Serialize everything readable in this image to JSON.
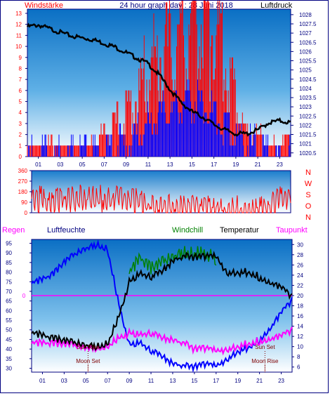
{
  "header": {
    "left": "Windstärke",
    "center": "24 hour graph day : 28 Juni 2018",
    "right": "Luftdruck"
  },
  "lower_labels": {
    "regen": "Regen",
    "luftfeuchte": "Luftfeuchte",
    "windchill": "Windchill",
    "temperatur": "Temperatur",
    "taupunkt": "Taupunkt"
  },
  "colors": {
    "wind_gust": "#ff0000",
    "wind_avg": "#0000ff",
    "pressure": "#000000",
    "direction": "#ff0000",
    "humidity": "#0000ff",
    "temperature": "#000000",
    "windchill": "#008000",
    "dewpoint": "#ff00ff",
    "axis_text": "#000080",
    "wind_axis_text": "#ff0000"
  },
  "chart_data": [
    {
      "type": "line",
      "title": "24 hour graph day : 28 Juni 2018",
      "xlabel": "",
      "x_ticks": [
        "01",
        "03",
        "05",
        "07",
        "09",
        "11",
        "13",
        "15",
        "17",
        "19",
        "21",
        "23"
      ],
      "y_left_label": "Windstärke",
      "y_left_ticks": [
        0,
        1,
        2,
        3,
        4,
        5,
        6,
        7,
        8,
        9,
        10,
        11,
        12,
        13
      ],
      "y_left_range": [
        0,
        13
      ],
      "y_right_label": "Luftdruck",
      "y_right_ticks": [
        1020.5,
        1021,
        1021.5,
        1022,
        1022.5,
        1023,
        1023.5,
        1024,
        1024.5,
        1025,
        1025.5,
        1026,
        1026.5,
        1027,
        1027.5,
        1028
      ],
      "y_right_range": [
        1020.3,
        1028.3
      ],
      "series": [
        {
          "name": "Luftdruck",
          "axis": "right",
          "x": [
            0,
            1,
            2,
            3,
            4,
            5,
            6,
            7,
            8,
            9,
            10,
            11,
            12,
            13,
            14,
            15,
            16,
            17,
            18,
            19,
            20,
            21,
            22,
            23,
            24
          ],
          "values": [
            1027.4,
            1027.5,
            1027.3,
            1027.1,
            1026.9,
            1026.8,
            1026.7,
            1026.5,
            1026.3,
            1026,
            1025.7,
            1025.4,
            1024.8,
            1024,
            1023.3,
            1022.8,
            1022.5,
            1022.1,
            1021.8,
            1021.6,
            1021.6,
            1021.8,
            1022.2,
            1022.3,
            1022.2
          ]
        },
        {
          "name": "Wind gust",
          "axis": "left",
          "x": [
            0,
            1,
            2,
            3,
            4,
            5,
            6,
            7,
            8,
            9,
            10,
            11,
            12,
            13,
            14,
            15,
            16,
            17,
            18,
            19,
            20,
            21,
            22,
            23,
            24
          ],
          "values": [
            1,
            1,
            1,
            1,
            1,
            1,
            1,
            2,
            3,
            4,
            5,
            8,
            9,
            10,
            11,
            12,
            13,
            13,
            9,
            5,
            2,
            2,
            1,
            1,
            2
          ]
        },
        {
          "name": "Wind avg",
          "axis": "left",
          "x": [
            0,
            1,
            2,
            3,
            4,
            5,
            6,
            7,
            8,
            9,
            10,
            11,
            12,
            13,
            14,
            15,
            16,
            17,
            18,
            19,
            20,
            21,
            22,
            23,
            24
          ],
          "values": [
            0,
            0,
            0,
            0,
            0,
            0,
            0,
            0,
            1,
            1,
            2,
            3,
            4,
            4,
            5,
            5,
            5,
            4,
            3,
            2,
            1,
            1,
            0,
            0,
            0
          ]
        }
      ]
    },
    {
      "type": "line",
      "y_ticks": [
        0,
        90,
        180,
        270,
        360
      ],
      "y_range": [
        0,
        360
      ],
      "compass_labels": [
        "N",
        "W",
        "S",
        "O",
        "N"
      ],
      "series": [
        {
          "name": "Wind direction",
          "x": [
            0,
            1,
            2,
            3,
            4,
            5,
            6,
            7,
            8,
            9,
            10,
            11,
            12,
            13,
            14,
            15,
            16,
            17,
            18,
            19,
            20,
            21,
            22,
            23,
            24
          ],
          "values": [
            180,
            170,
            160,
            165,
            180,
            185,
            190,
            170,
            175,
            160,
            150,
            120,
            110,
            105,
            100,
            100,
            95,
            90,
            85,
            90,
            95,
            100,
            110,
            170,
            180
          ]
        }
      ]
    },
    {
      "type": "line",
      "x_ticks": [
        "01",
        "03",
        "05",
        "07",
        "09",
        "11",
        "13",
        "15",
        "17",
        "19",
        "21",
        "23"
      ],
      "y_left_ticks": [
        30,
        35,
        40,
        45,
        50,
        55,
        60,
        65,
        70,
        75,
        80,
        85,
        90,
        95
      ],
      "y_left_range": [
        28,
        97
      ],
      "y_left_label": "Luftfeuchte",
      "y_right_ticks": [
        6,
        8,
        10,
        12,
        14,
        16,
        18,
        20,
        22,
        24,
        26,
        28,
        30
      ],
      "y_right_range": [
        5,
        31
      ],
      "regen_zero": "0",
      "annotations": [
        "Sun Rise",
        "Moon Set",
        "Sun Set",
        "Moon Rise"
      ],
      "series": [
        {
          "name": "Luftfeuchte",
          "axis": "left",
          "x": [
            0,
            1,
            2,
            3,
            4,
            5,
            6,
            7,
            8,
            9,
            10,
            11,
            12,
            13,
            14,
            15,
            16,
            17,
            18,
            19,
            20,
            21,
            22,
            23,
            24
          ],
          "values": [
            75,
            77,
            80,
            86,
            90,
            93,
            95,
            93,
            65,
            43,
            45,
            40,
            37,
            33,
            32,
            32,
            33,
            32,
            36,
            40,
            42,
            46,
            52,
            60,
            66
          ]
        },
        {
          "name": "Temperatur",
          "axis": "right",
          "x": [
            0,
            1,
            2,
            3,
            4,
            5,
            6,
            7,
            8,
            9,
            10,
            11,
            12,
            13,
            14,
            15,
            16,
            17,
            18,
            19,
            20,
            21,
            22,
            23,
            24
          ],
          "values": [
            13,
            12.5,
            12,
            11.5,
            11,
            10.5,
            10.3,
            11,
            16,
            23,
            25,
            24,
            25,
            27,
            28,
            28,
            28,
            28,
            25,
            25,
            25,
            24,
            23,
            22,
            20
          ]
        },
        {
          "name": "Windchill",
          "axis": "right",
          "x": [
            9,
            10,
            11,
            13,
            14,
            15,
            16,
            17
          ],
          "values": [
            25,
            28,
            26,
            28,
            29,
            29,
            29,
            28
          ]
        },
        {
          "name": "Taupunkt",
          "axis": "right",
          "x": [
            0,
            1,
            2,
            3,
            4,
            5,
            6,
            7,
            8,
            9,
            10,
            11,
            12,
            13,
            14,
            15,
            16,
            17,
            18,
            19,
            20,
            21,
            22,
            23,
            24
          ],
          "values": [
            11,
            11,
            11,
            10.8,
            10.5,
            10,
            10,
            10.5,
            12,
            13,
            13,
            13,
            12,
            11.5,
            11,
            10,
            10,
            9.5,
            10,
            10.5,
            11,
            11.5,
            12,
            12.5,
            13.5
          ]
        }
      ]
    }
  ]
}
